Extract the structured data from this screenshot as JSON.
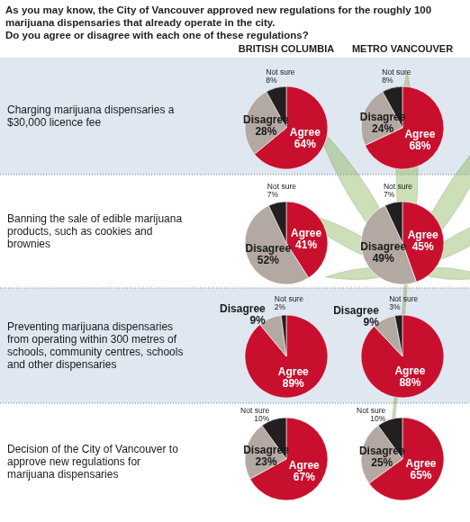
{
  "question": [
    "As you may know, the City of Vancouver approved new regulations for the roughly 100 marijuana dispensaries that already operate in the city.",
    "Do you agree or disagree with each one of these regulations?"
  ],
  "columns": [
    "BRITISH COLUMBIA",
    "METRO VANCOUVER"
  ],
  "rows": [
    "Charging marijuana dispensaries a $30,000 licence fee",
    "Banning the sale of edible marijuana products, such as cookies and brownies",
    "Preventing marijuana dispensaries from operating within 300 metres of schools, community centres, schools and other dispensaries",
    "Decision of the City of Vancouver to approve new regulations for marijuana dispensaries"
  ],
  "chart_data": [
    {
      "type": "pie",
      "categories": [
        "Agree",
        "Disagree",
        "Not sure"
      ],
      "values": [
        64,
        28,
        8
      ],
      "value_labels": [
        "64%",
        "28%",
        "8%"
      ],
      "colors": [
        "#c8102e",
        "#b3a8a2",
        "#231f20"
      ],
      "data_labels": true
    },
    {
      "type": "pie",
      "categories": [
        "Agree",
        "Disagree",
        "Not sure"
      ],
      "values": [
        68,
        24,
        8
      ],
      "value_labels": [
        "68%",
        "24%",
        "8%"
      ],
      "colors": [
        "#c8102e",
        "#b3a8a2",
        "#231f20"
      ],
      "data_labels": true
    },
    {
      "type": "pie",
      "categories": [
        "Agree",
        "Disagree",
        "Not sure"
      ],
      "values": [
        41,
        52,
        7
      ],
      "value_labels": [
        "41%",
        "52%",
        "7%"
      ],
      "colors": [
        "#c8102e",
        "#b3a8a2",
        "#231f20"
      ],
      "data_labels": true
    },
    {
      "type": "pie",
      "categories": [
        "Agree",
        "Disagree",
        "Not sure"
      ],
      "values": [
        45,
        49,
        7
      ],
      "value_labels": [
        "45%",
        "49%",
        "7%"
      ],
      "colors": [
        "#c8102e",
        "#b3a8a2",
        "#231f20"
      ],
      "data_labels": true
    },
    {
      "type": "pie",
      "categories": [
        "Agree",
        "Disagree",
        "Not sure"
      ],
      "values": [
        89,
        9,
        2
      ],
      "value_labels": [
        "89%",
        "9%",
        "2%"
      ],
      "colors": [
        "#c8102e",
        "#b3a8a2",
        "#231f20"
      ],
      "data_labels": true
    },
    {
      "type": "pie",
      "categories": [
        "Agree",
        "Disagree",
        "Not sure"
      ],
      "values": [
        88,
        9,
        3
      ],
      "value_labels": [
        "88%",
        "9%",
        "3%"
      ],
      "colors": [
        "#c8102e",
        "#b3a8a2",
        "#231f20"
      ],
      "data_labels": true
    },
    {
      "type": "pie",
      "categories": [
        "Agree",
        "Disagree",
        "Not sure"
      ],
      "values": [
        67,
        23,
        10
      ],
      "value_labels": [
        "67%",
        "23%",
        "10%"
      ],
      "colors": [
        "#c8102e",
        "#b3a8a2",
        "#231f20"
      ],
      "data_labels": true
    },
    {
      "type": "pie",
      "categories": [
        "Agree",
        "Disagree",
        "Not sure"
      ],
      "values": [
        65,
        25,
        10
      ],
      "value_labels": [
        "65%",
        "25%",
        "10%"
      ],
      "colors": [
        "#c8102e",
        "#b3a8a2",
        "#231f20"
      ],
      "data_labels": true
    }
  ]
}
